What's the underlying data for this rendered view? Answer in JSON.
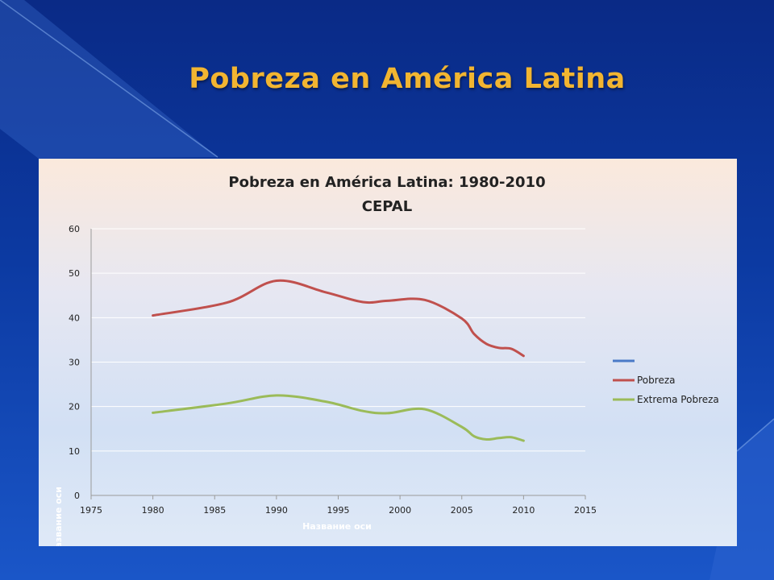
{
  "slide": {
    "title": "Pobreza en América Latina"
  },
  "chart_data": {
    "type": "line",
    "title": "Pobreza en América Latina: 1980-2010",
    "subtitle": "CEPAL",
    "xlabel": "Название оси",
    "ylabel": "Название оси",
    "xlim": [
      1975,
      2015
    ],
    "ylim": [
      0,
      60
    ],
    "x_ticks": [
      1975,
      1980,
      1985,
      1990,
      1995,
      2000,
      2005,
      2010,
      2015
    ],
    "y_ticks": [
      0,
      10,
      20,
      30,
      40,
      50,
      60
    ],
    "grid": true,
    "legend_position": "right",
    "series": [
      {
        "name": "",
        "color": "#4a7ac7",
        "x": [],
        "y": []
      },
      {
        "name": "Pobreza",
        "color": "#c0504d",
        "x": [
          1980,
          1986,
          1990,
          1994,
          1997,
          1999,
          2002,
          2005,
          2006,
          2007,
          2008,
          2009,
          2010
        ],
        "y": [
          40.5,
          43.4,
          48.3,
          45.7,
          43.5,
          43.8,
          44.0,
          39.8,
          36.3,
          34.1,
          33.2,
          33.0,
          31.4
        ]
      },
      {
        "name": "Extrema Pobreza",
        "color": "#9bbb59",
        "x": [
          1980,
          1986,
          1990,
          1994,
          1997,
          1999,
          2002,
          2005,
          2006,
          2007,
          2008,
          2009,
          2010
        ],
        "y": [
          18.6,
          20.7,
          22.5,
          21.1,
          19.0,
          18.5,
          19.4,
          15.4,
          13.3,
          12.6,
          12.9,
          13.1,
          12.3
        ]
      }
    ]
  }
}
